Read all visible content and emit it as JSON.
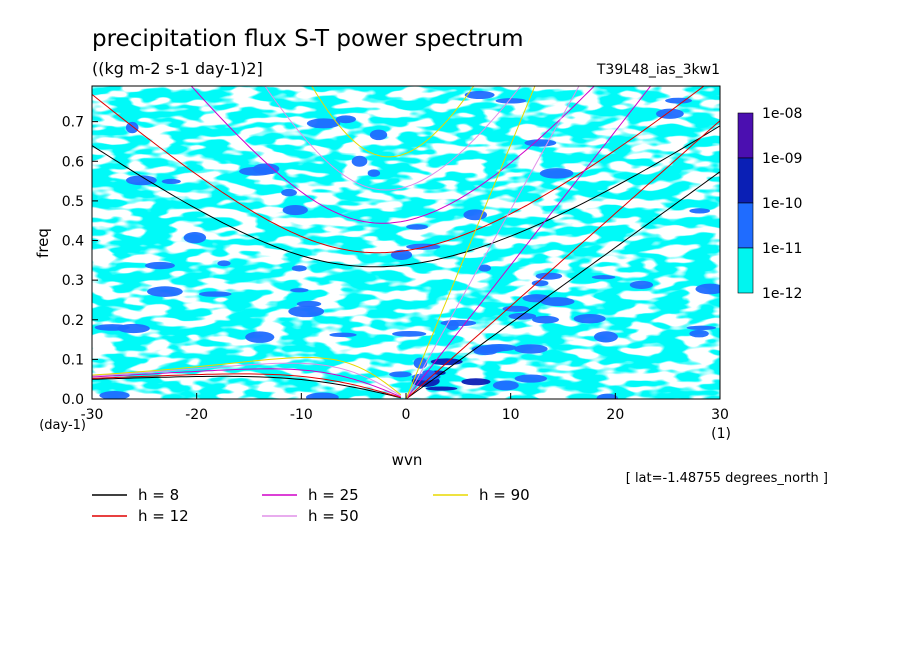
{
  "header": {
    "title": "precipitation flux S-T power spectrum",
    "units": "((kg m-2 s-1 day-1)2]",
    "run_name": "T39L48_ias_3kw1"
  },
  "chart_data": {
    "type": "heatmap",
    "xlabel": "wvn",
    "ylabel": "freq",
    "x_unit_label": "(1)",
    "y_unit_label": "(day-1)",
    "xlim": [
      -30,
      30
    ],
    "ylim": [
      0,
      0.79
    ],
    "xticks": [
      "-30",
      "-20",
      "-10",
      "0",
      "10",
      "20",
      "30"
    ],
    "yticks": [
      "0.0",
      "0.1",
      "0.2",
      "0.3",
      "0.4",
      "0.5",
      "0.6",
      "0.7"
    ],
    "colorbar": {
      "levels": [
        "1e-08",
        "1e-09",
        "1e-10",
        "1e-11",
        "1e-12"
      ],
      "colors": [
        "#4b0fb0",
        "#0a1fb5",
        "#1f6cff",
        "#00f5f0"
      ]
    },
    "dispersion_curves": [
      {
        "name": "h =  8",
        "h": 8,
        "color": "#000000"
      },
      {
        "name": "h = 12",
        "h": 12,
        "color": "#e00000"
      },
      {
        "name": "h = 25",
        "h": 25,
        "color": "#d000c8"
      },
      {
        "name": "h = 50",
        "h": 50,
        "color": "#e090e8"
      },
      {
        "name": "h = 90",
        "h": 90,
        "color": "#e8d800"
      }
    ],
    "annotation": "[ lat=-1.48755 degrees_north ]"
  }
}
